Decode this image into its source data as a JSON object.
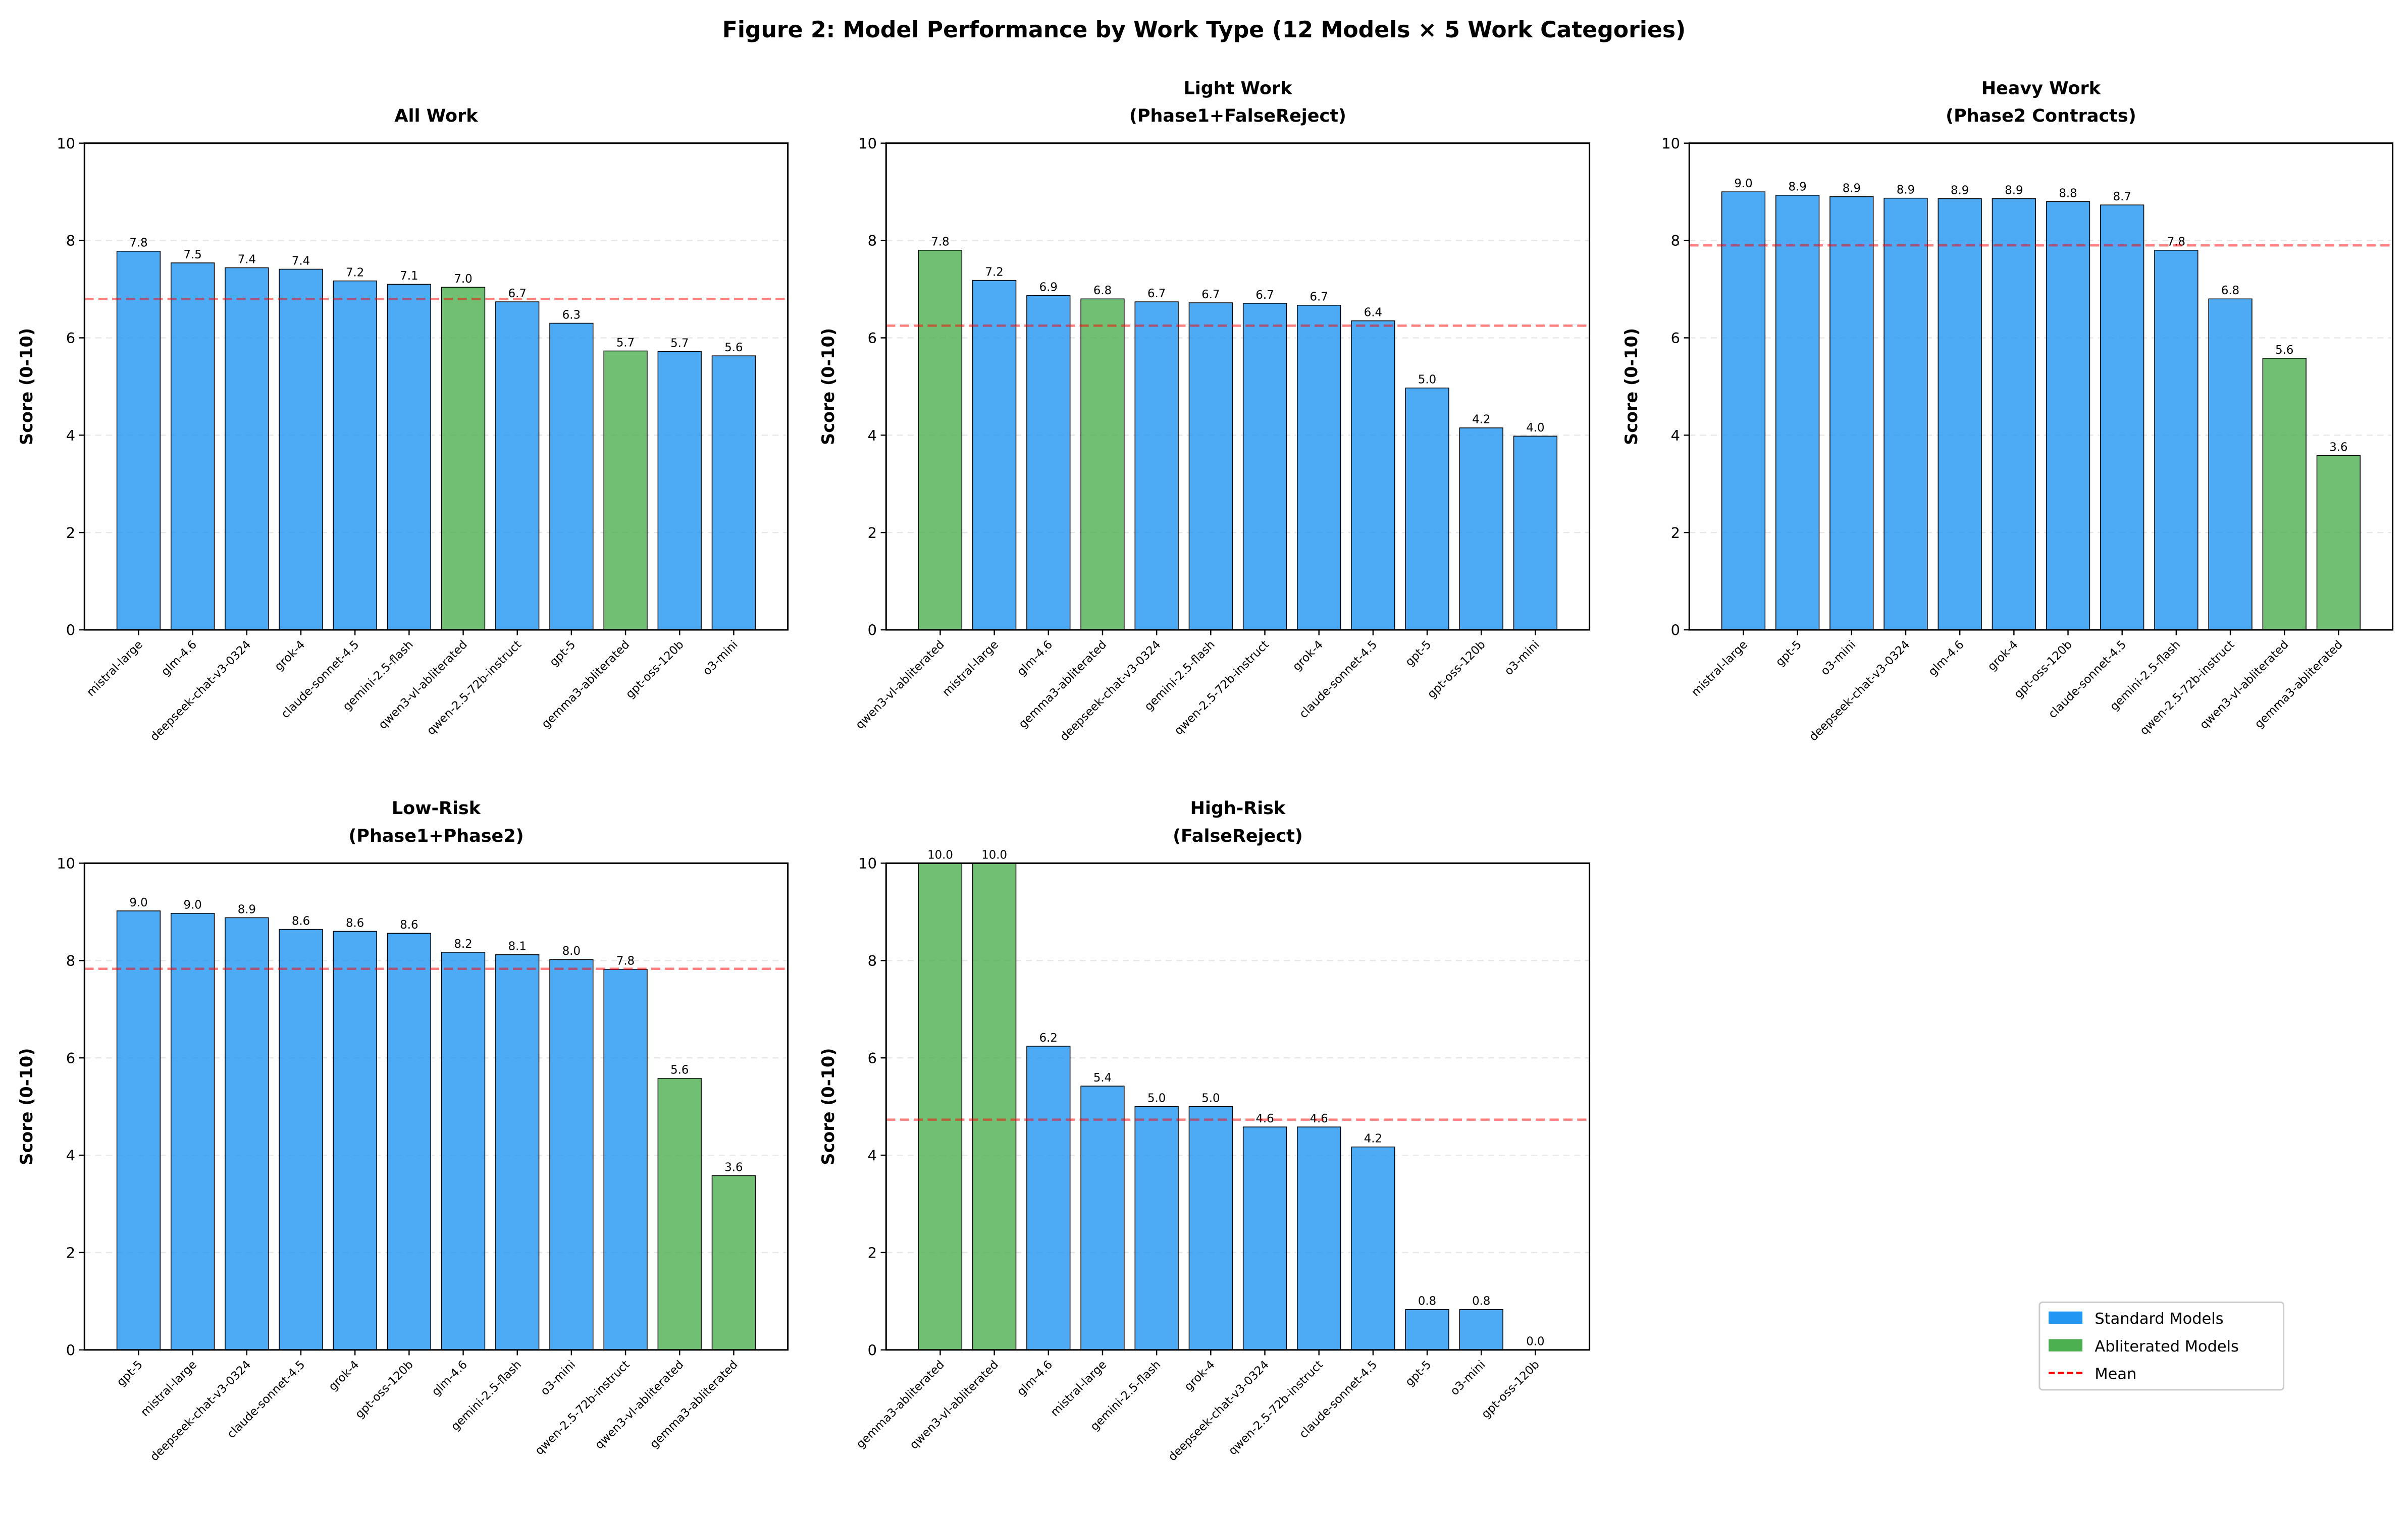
{
  "title": "Figure 2: Model Performance by Work Type (12 Models × 5 Work Categories)",
  "legend": {
    "position": "lower right",
    "items": [
      {
        "name": "Standard Models",
        "color": "#2196F3"
      },
      {
        "name": "Abliterated Models",
        "color": "#4CAF50"
      },
      {
        "name": "Mean",
        "color": "#ff0000"
      }
    ]
  },
  "chart_data": [
    {
      "type": "bar",
      "title": [
        "All Work"
      ],
      "ylabel": "Score (0-10)",
      "ylim": [
        0,
        10
      ],
      "yticks": [
        0,
        2,
        4,
        6,
        8,
        10
      ],
      "grid": true,
      "categories": [
        "mistral-large",
        "glm-4.6",
        "deepseek-chat-v3-0324",
        "grok-4",
        "claude-sonnet-4.5",
        "gemini-2.5-flash",
        "qwen3-vl-abliterated",
        "qwen-2.5-72b-instruct",
        "gpt-5",
        "gemma3-abliterated",
        "gpt-oss-120b",
        "o3-mini"
      ],
      "values": [
        7.78,
        7.54,
        7.44,
        7.41,
        7.17,
        7.1,
        7.04,
        6.74,
        6.3,
        5.73,
        5.72,
        5.63
      ],
      "value_labels": [
        "7.8",
        "7.5",
        "7.4",
        "7.4",
        "7.2",
        "7.1",
        "7.0",
        "6.7",
        "6.3",
        "5.7",
        "5.7",
        "5.6"
      ],
      "colors": [
        "#2196F3",
        "#2196F3",
        "#2196F3",
        "#2196F3",
        "#2196F3",
        "#2196F3",
        "#4CAF50",
        "#2196F3",
        "#2196F3",
        "#4CAF50",
        "#2196F3",
        "#2196F3"
      ],
      "mean": 6.8
    },
    {
      "type": "bar",
      "title": [
        "Light Work",
        "(Phase1+FalseReject)"
      ],
      "ylabel": "Score (0-10)",
      "ylim": [
        0,
        10
      ],
      "yticks": [
        0,
        2,
        4,
        6,
        8,
        10
      ],
      "grid": true,
      "categories": [
        "qwen3-vl-abliterated",
        "mistral-large",
        "glm-4.6",
        "gemma3-abliterated",
        "deepseek-chat-v3-0324",
        "gemini-2.5-flash",
        "qwen-2.5-72b-instruct",
        "grok-4",
        "claude-sonnet-4.5",
        "gpt-5",
        "gpt-oss-120b",
        "o3-mini"
      ],
      "values": [
        7.8,
        7.18,
        6.87,
        6.8,
        6.74,
        6.72,
        6.71,
        6.67,
        6.35,
        4.97,
        4.15,
        3.98
      ],
      "value_labels": [
        "7.8",
        "7.2",
        "6.9",
        "6.8",
        "6.7",
        "6.7",
        "6.7",
        "6.7",
        "6.4",
        "5.0",
        "4.2",
        "4.0"
      ],
      "colors": [
        "#4CAF50",
        "#2196F3",
        "#2196F3",
        "#4CAF50",
        "#2196F3",
        "#2196F3",
        "#2196F3",
        "#2196F3",
        "#2196F3",
        "#2196F3",
        "#2196F3",
        "#2196F3"
      ],
      "mean": 6.25
    },
    {
      "type": "bar",
      "title": [
        "Heavy Work",
        "(Phase2 Contracts)"
      ],
      "ylabel": "Score (0-10)",
      "ylim": [
        0,
        10
      ],
      "yticks": [
        0,
        2,
        4,
        6,
        8,
        10
      ],
      "grid": true,
      "categories": [
        "mistral-large",
        "gpt-5",
        "o3-mini",
        "deepseek-chat-v3-0324",
        "glm-4.6",
        "grok-4",
        "gpt-oss-120b",
        "claude-sonnet-4.5",
        "gemini-2.5-flash",
        "qwen-2.5-72b-instruct",
        "qwen3-vl-abliterated",
        "gemma3-abliterated"
      ],
      "values": [
        9.0,
        8.93,
        8.9,
        8.87,
        8.86,
        8.86,
        8.8,
        8.73,
        7.8,
        6.8,
        5.58,
        3.58
      ],
      "value_labels": [
        "9.0",
        "8.9",
        "8.9",
        "8.9",
        "8.9",
        "8.9",
        "8.8",
        "8.7",
        "7.8",
        "6.8",
        "5.6",
        "3.6"
      ],
      "colors": [
        "#2196F3",
        "#2196F3",
        "#2196F3",
        "#2196F3",
        "#2196F3",
        "#2196F3",
        "#2196F3",
        "#2196F3",
        "#2196F3",
        "#2196F3",
        "#4CAF50",
        "#4CAF50"
      ],
      "mean": 7.9
    },
    {
      "type": "bar",
      "title": [
        "Low-Risk",
        "(Phase1+Phase2)"
      ],
      "ylabel": "Score (0-10)",
      "ylim": [
        0,
        10
      ],
      "yticks": [
        0,
        2,
        4,
        6,
        8,
        10
      ],
      "grid": true,
      "categories": [
        "gpt-5",
        "mistral-large",
        "deepseek-chat-v3-0324",
        "claude-sonnet-4.5",
        "grok-4",
        "gpt-oss-120b",
        "glm-4.6",
        "gemini-2.5-flash",
        "o3-mini",
        "qwen-2.5-72b-instruct",
        "qwen3-vl-abliterated",
        "gemma3-abliterated"
      ],
      "values": [
        9.02,
        8.97,
        8.88,
        8.64,
        8.6,
        8.56,
        8.17,
        8.12,
        8.02,
        7.82,
        5.58,
        3.58
      ],
      "value_labels": [
        "9.0",
        "9.0",
        "8.9",
        "8.6",
        "8.6",
        "8.6",
        "8.2",
        "8.1",
        "8.0",
        "7.8",
        "5.6",
        "3.6"
      ],
      "colors": [
        "#2196F3",
        "#2196F3",
        "#2196F3",
        "#2196F3",
        "#2196F3",
        "#2196F3",
        "#2196F3",
        "#2196F3",
        "#2196F3",
        "#2196F3",
        "#4CAF50",
        "#4CAF50"
      ],
      "mean": 7.83
    },
    {
      "type": "bar",
      "title": [
        "High-Risk",
        "(FalseReject)"
      ],
      "ylabel": "Score (0-10)",
      "ylim": [
        0,
        10
      ],
      "yticks": [
        0,
        2,
        4,
        6,
        8,
        10
      ],
      "grid": true,
      "categories": [
        "gemma3-abliterated",
        "qwen3-vl-abliterated",
        "glm-4.6",
        "mistral-large",
        "gemini-2.5-flash",
        "grok-4",
        "deepseek-chat-v3-0324",
        "qwen-2.5-72b-instruct",
        "claude-sonnet-4.5",
        "gpt-5",
        "o3-mini",
        "gpt-oss-120b"
      ],
      "values": [
        10,
        10,
        6.24,
        5.42,
        5.0,
        5.0,
        4.58,
        4.58,
        4.17,
        0.83,
        0.83,
        0
      ],
      "value_labels": [
        "10.0",
        "10.0",
        "6.2",
        "5.4",
        "5.0",
        "5.0",
        "4.6",
        "4.6",
        "4.2",
        "0.8",
        "0.8",
        "0.0"
      ],
      "colors": [
        "#4CAF50",
        "#4CAF50",
        "#2196F3",
        "#2196F3",
        "#2196F3",
        "#2196F3",
        "#2196F3",
        "#2196F3",
        "#2196F3",
        "#2196F3",
        "#2196F3",
        "#2196F3"
      ],
      "mean": 4.73
    }
  ]
}
